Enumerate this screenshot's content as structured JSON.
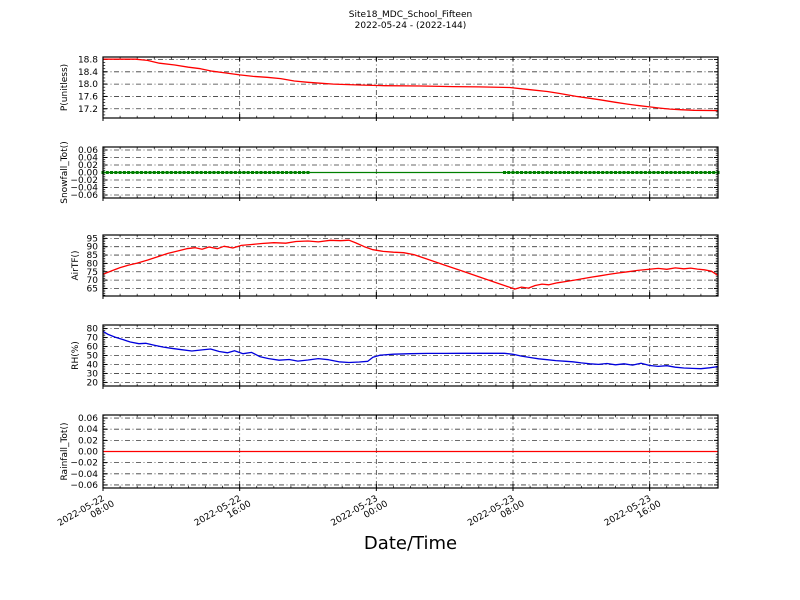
{
  "title": "Site18_MDC_School_Fifteen",
  "subtitle": "2022-05-24 - (2022-144)",
  "xlabel": "Date/Time",
  "colors": {
    "red": "#ff0000",
    "green": "#008000",
    "blue": "#0000dd",
    "grid": "#3a3a3a",
    "frame": "#000000"
  },
  "x_axis": {
    "range_hours": [
      0,
      36
    ],
    "major_tick_hours": [
      0,
      8,
      16,
      24,
      32
    ],
    "minor_tick_step_hours": 1,
    "tick_labels": [
      {
        "date": "2022-05-22",
        "time": "08:00"
      },
      {
        "date": "2022-05-22",
        "time": "16:00"
      },
      {
        "date": "2022-05-23",
        "time": "00:00"
      },
      {
        "date": "2022-05-23",
        "time": "08:00"
      },
      {
        "date": "2022-05-23",
        "time": "16:00"
      }
    ]
  },
  "chart_data": [
    {
      "type": "line",
      "ylabel": "P(unitless)",
      "color": "#ff0000",
      "ylim": [
        16.9,
        18.88
      ],
      "yticks": [
        {
          "v": 18.8,
          "label": "18.8"
        },
        {
          "v": 18.4,
          "label": "18.4"
        },
        {
          "v": 18.0,
          "label": "18.0"
        },
        {
          "v": 17.6,
          "label": "17.6"
        },
        {
          "v": 17.2,
          "label": "17.2"
        }
      ],
      "y_minor_step": 0.1,
      "x": [
        0,
        1.9,
        2.6,
        3.3,
        4.2,
        5.0,
        5.7,
        6.4,
        7.2,
        8.0,
        8.8,
        9.6,
        10.4,
        11.2,
        12.0,
        12.7,
        13.5,
        15.0,
        16.5,
        18.6,
        20.5,
        22.0,
        23.8,
        25.0,
        26.0,
        26.7,
        27.7,
        28.5,
        29.1,
        30.0,
        30.7,
        31.4,
        32.0,
        32.6,
        33.2,
        33.8,
        34.6,
        36.0
      ],
      "y": [
        18.81,
        18.81,
        18.77,
        18.68,
        18.62,
        18.55,
        18.5,
        18.42,
        18.36,
        18.3,
        18.25,
        18.22,
        18.18,
        18.1,
        18.06,
        18.03,
        18.0,
        17.97,
        17.95,
        17.94,
        17.92,
        17.91,
        17.89,
        17.82,
        17.76,
        17.7,
        17.6,
        17.54,
        17.49,
        17.41,
        17.35,
        17.3,
        17.26,
        17.22,
        17.19,
        17.17,
        17.15,
        17.14
      ]
    },
    {
      "type": "line+markers",
      "ylabel": "Snowfall_Tot()",
      "color": "#008000",
      "ylim": [
        -0.068,
        0.068
      ],
      "yticks": [
        {
          "v": 0.06,
          "label": "0.06"
        },
        {
          "v": 0.04,
          "label": "0.04"
        },
        {
          "v": 0.02,
          "label": "0.02"
        },
        {
          "v": 0.0,
          "label": "0.00"
        },
        {
          "v": -0.02,
          "label": "−0.02"
        },
        {
          "v": -0.04,
          "label": "−0.04"
        },
        {
          "v": -0.06,
          "label": "−0.06"
        }
      ],
      "y_minor_step": 0.005,
      "x": [
        0,
        36
      ],
      "y": [
        0,
        0
      ],
      "marker_segments_hours": [
        [
          0,
          12.1
        ],
        [
          23.5,
          36
        ]
      ],
      "marker_step_hours": 0.25
    },
    {
      "type": "line",
      "ylabel": "AirTF()",
      "color": "#ff0000",
      "ylim": [
        60.5,
        97
      ],
      "yticks": [
        {
          "v": 95,
          "label": "95"
        },
        {
          "v": 90,
          "label": "90"
        },
        {
          "v": 85,
          "label": "85"
        },
        {
          "v": 80,
          "label": "80"
        },
        {
          "v": 75,
          "label": "75"
        },
        {
          "v": 70,
          "label": "70"
        },
        {
          "v": 65,
          "label": "65"
        }
      ],
      "y_minor_step": 1,
      "x": [
        0,
        0.5,
        1,
        1.5,
        2,
        2.6,
        3.2,
        3.8,
        4.4,
        4.9,
        5.4,
        5.8,
        6.2,
        6.7,
        7.1,
        7.6,
        8.1,
        8.7,
        9.3,
        10,
        10.7,
        11.3,
        12,
        12.6,
        13.3,
        13.9,
        14.4,
        14.8,
        15.3,
        15.8,
        16.4,
        17,
        17.6,
        18.2,
        19,
        20,
        21,
        22,
        23,
        23.6,
        24.1,
        24.5,
        24.9,
        25.3,
        25.7,
        26.1,
        26.6,
        27.1,
        27.6,
        28.1,
        28.6,
        29.1,
        29.6,
        30.1,
        30.7,
        31.3,
        31.9,
        32.5,
        33,
        33.5,
        34,
        34.4,
        34.8,
        35.2,
        35.6,
        36
      ],
      "y": [
        73.5,
        75.5,
        77.5,
        79,
        80.2,
        82,
        84,
        86,
        87.5,
        88.8,
        89.4,
        88.5,
        89.8,
        88.8,
        90.3,
        89.2,
        90.8,
        91.3,
        91.9,
        92.4,
        92.1,
        93.1,
        93.4,
        92.9,
        93.8,
        93.6,
        93.9,
        92.3,
        90,
        88.2,
        87.2,
        86.7,
        86.4,
        85.3,
        82.5,
        79,
        75.5,
        72,
        68.5,
        66.4,
        64.6,
        65.8,
        65.2,
        66.8,
        67.6,
        67.2,
        68.4,
        69.2,
        70,
        70.9,
        71.8,
        72.6,
        73.4,
        74.2,
        75,
        75.8,
        76.4,
        77,
        76.5,
        77.3,
        76.8,
        77.2,
        76.6,
        76.2,
        75.4,
        72.8
      ]
    },
    {
      "type": "line",
      "ylabel": "RH(%)",
      "color": "#0000dd",
      "ylim": [
        16,
        84
      ],
      "yticks": [
        {
          "v": 80,
          "label": "80"
        },
        {
          "v": 70,
          "label": "70"
        },
        {
          "v": 60,
          "label": "60"
        },
        {
          "v": 50,
          "label": "50"
        },
        {
          "v": 40,
          "label": "40"
        },
        {
          "v": 30,
          "label": "30"
        },
        {
          "v": 20,
          "label": "20"
        }
      ],
      "y_minor_step": 2,
      "x": [
        0,
        0.3,
        0.7,
        1.2,
        1.6,
        2.1,
        2.5,
        3,
        3.5,
        4,
        4.6,
        5.2,
        5.8,
        6.3,
        6.8,
        7.3,
        7.7,
        8.2,
        8.7,
        9.2,
        9.7,
        10.3,
        10.9,
        11.4,
        12,
        12.6,
        13.2,
        13.8,
        14.4,
        15,
        15.5,
        15.8,
        16.2,
        17,
        18,
        19,
        20,
        21,
        22,
        23,
        23.5,
        24,
        24.5,
        25,
        25.5,
        26,
        26.5,
        27,
        27.5,
        28,
        28.5,
        29,
        29.5,
        30,
        30.5,
        31,
        31.5,
        32,
        32.5,
        33,
        33.5,
        34,
        34.5,
        35,
        35.5,
        36
      ],
      "y": [
        77,
        73.5,
        70.5,
        67.5,
        65,
        63.2,
        63.6,
        61.5,
        59.5,
        58,
        56.5,
        55,
        56.2,
        57.2,
        54.5,
        53,
        55.2,
        52,
        53.5,
        48.5,
        46.5,
        44.8,
        45.5,
        43.8,
        45,
        46.5,
        45.3,
        43,
        42.2,
        42.8,
        43.5,
        48,
        50.3,
        51.5,
        52,
        52.3,
        52.3,
        52.4,
        52.4,
        52.5,
        52.5,
        51.3,
        49.3,
        47.8,
        46.3,
        45.3,
        44.3,
        43.6,
        43,
        41.8,
        40.8,
        40.1,
        41.1,
        39.6,
        40.8,
        39.3,
        41.3,
        38.8,
        37.8,
        38.6,
        37,
        36.1,
        35.6,
        35.3,
        36.3,
        37.6
      ]
    },
    {
      "type": "line",
      "ylabel": "Rainfall_Tot()",
      "color": "#ff0000",
      "ylim": [
        -0.0655,
        0.0655
      ],
      "yticks": [
        {
          "v": 0.06,
          "label": "0.06"
        },
        {
          "v": 0.04,
          "label": "0.04"
        },
        {
          "v": 0.02,
          "label": "0.02"
        },
        {
          "v": 0.0,
          "label": "0.00"
        },
        {
          "v": -0.02,
          "label": "−0.02"
        },
        {
          "v": -0.04,
          "label": "−0.04"
        },
        {
          "v": -0.06,
          "label": "−0.06"
        }
      ],
      "y_minor_step": 0.005,
      "x": [
        0,
        36
      ],
      "y": [
        0,
        0
      ]
    }
  ]
}
